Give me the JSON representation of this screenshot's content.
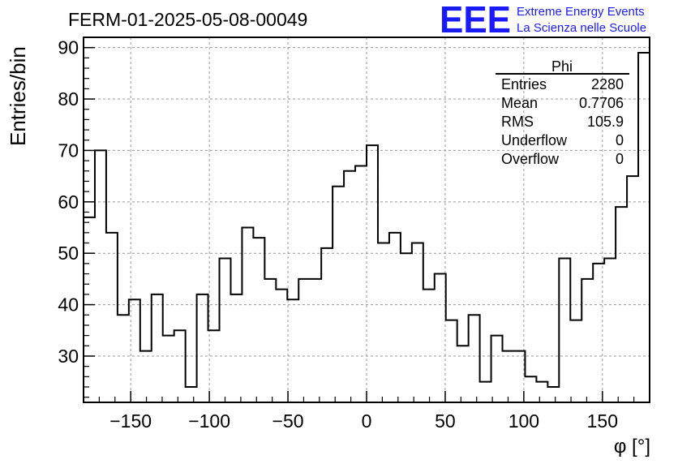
{
  "title": "FERM-01-2025-05-08-00049",
  "logo": {
    "text": "EEE",
    "line1": "Extreme Energy Events",
    "line2": "La Scienza nelle Scuole",
    "color": "#1a1aff"
  },
  "stats": {
    "name": "Phi",
    "rows": [
      {
        "label": "Entries",
        "value": "2280"
      },
      {
        "label": "Mean",
        "value": "0.7706"
      },
      {
        "label": "RMS",
        "value": "105.9"
      },
      {
        "label": "Underflow",
        "value": "0"
      },
      {
        "label": "Overflow",
        "value": "0"
      }
    ]
  },
  "chart_data": {
    "type": "histogram",
    "title": "FERM-01-2025-05-08-00049",
    "xlabel": "φ [°]",
    "ylabel": "Entries/bin",
    "xlim": [
      -180,
      180
    ],
    "ylim": [
      21,
      92
    ],
    "bin_width": 7.2,
    "xticks": [
      -150,
      -100,
      -50,
      0,
      50,
      100,
      150
    ],
    "xtick_labels": [
      "−150",
      "−100",
      "−50",
      "0",
      "50",
      "100",
      "150"
    ],
    "yticks": [
      30,
      40,
      50,
      60,
      70,
      80,
      90
    ],
    "grid": true,
    "values": [
      57,
      70,
      54,
      38,
      41,
      31,
      42,
      34,
      35,
      24,
      42,
      35,
      49,
      42,
      55,
      53,
      45,
      43,
      41,
      45,
      45,
      51,
      63,
      66,
      67,
      71,
      52,
      54,
      50,
      52,
      43,
      46,
      37,
      32,
      38,
      25,
      34,
      31,
      31,
      26,
      25,
      24,
      49,
      37,
      45,
      48,
      49,
      59,
      65,
      89
    ]
  }
}
